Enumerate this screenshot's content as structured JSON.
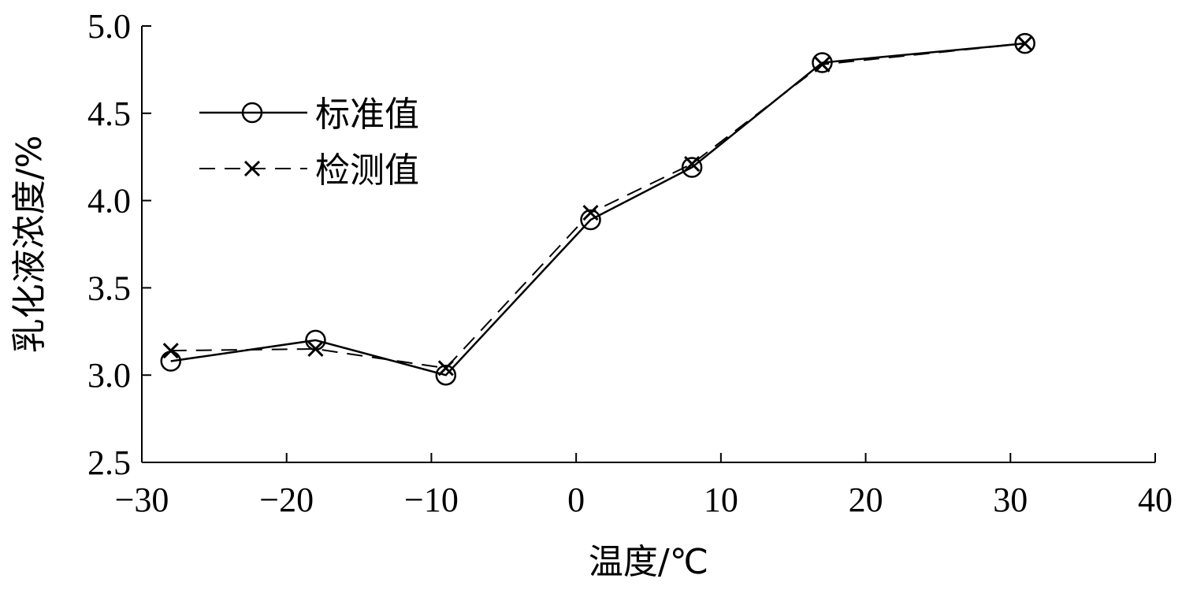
{
  "chart_data": {
    "type": "line",
    "xlabel": "温度/℃",
    "ylabel": "乳化液浓度/%",
    "xlim": [
      -30,
      40
    ],
    "ylim": [
      2.5,
      5.0
    ],
    "x_ticks": [
      -30,
      -20,
      -10,
      0,
      10,
      20,
      30,
      40
    ],
    "y_ticks": [
      2.5,
      3.0,
      3.5,
      4.0,
      4.5,
      5.0
    ],
    "x_tick_labels": [
      "−30",
      "−20",
      "−10",
      "0",
      "10",
      "20",
      "30",
      "40"
    ],
    "y_tick_labels": [
      "2.5",
      "3.0",
      "3.5",
      "4.0",
      "4.5",
      "5.0"
    ],
    "grid": false,
    "legend_position": "top-left",
    "series": [
      {
        "name": "标准值",
        "style": "solid",
        "marker": "circle",
        "color": "#000000",
        "x": [
          -28,
          -18,
          -9,
          1,
          8,
          17,
          31
        ],
        "y": [
          3.08,
          3.2,
          3.0,
          3.89,
          4.19,
          4.79,
          4.9
        ]
      },
      {
        "name": "检测值",
        "style": "dashed",
        "marker": "x",
        "color": "#000000",
        "x": [
          -28,
          -18,
          -9,
          1,
          8,
          17,
          31
        ],
        "y": [
          3.14,
          3.15,
          3.04,
          3.93,
          4.21,
          4.78,
          4.9
        ]
      }
    ]
  }
}
